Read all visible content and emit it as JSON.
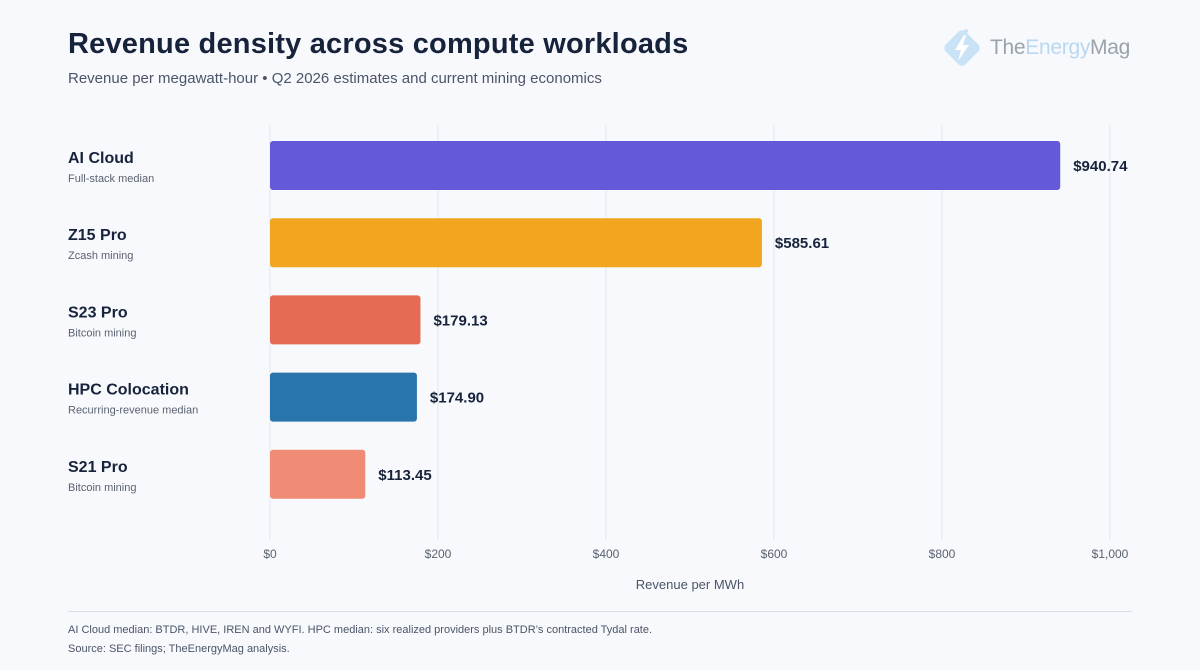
{
  "title": "Revenue density across compute workloads",
  "subtitle": "Revenue per megawatt-hour • Q2 2026 estimates and current mining economics",
  "logo": {
    "part1": "The",
    "part2": "Energy",
    "part3": "Mag",
    "icon": "bolt-diamond-icon"
  },
  "colors": {
    "gridline": "#e3e7ee",
    "label": "#16233b",
    "sublabel": "#5a6270",
    "tick": "#5a6270"
  },
  "chart_data": {
    "type": "bar",
    "orientation": "horizontal",
    "categories": [
      "AI Cloud",
      "Z15 Pro",
      "S23 Pro",
      "HPC Colocation",
      "S21 Pro"
    ],
    "category_sublabels": [
      "Full-stack median",
      "Zcash mining",
      "Bitcoin mining",
      "Recurring-revenue median",
      "Bitcoin mining"
    ],
    "values": [
      940.74,
      585.61,
      179.13,
      174.9,
      113.45
    ],
    "value_labels": [
      "$940.74",
      "$585.61",
      "$179.13",
      "$174.90",
      "$113.45"
    ],
    "bar_colors": [
      "#6459d9",
      "#f2a51e",
      "#e56b57",
      "#2a74ae",
      "#f08b76"
    ],
    "xlabel": "Revenue per MWh",
    "ylabel": "",
    "xlim": [
      0,
      1000
    ],
    "xticks": [
      0,
      200,
      400,
      600,
      800,
      1000
    ],
    "xtick_labels": [
      "$0",
      "$200",
      "$400",
      "$600",
      "$800",
      "$1,000"
    ],
    "grid": true,
    "legend": "none"
  },
  "footnotes": {
    "line1": "AI Cloud median: BTDR, HIVE, IREN and WYFI. HPC median: six realized providers plus BTDR’s contracted Tydal rate.",
    "line2": "Source: SEC filings; TheEnergyMag analysis."
  }
}
